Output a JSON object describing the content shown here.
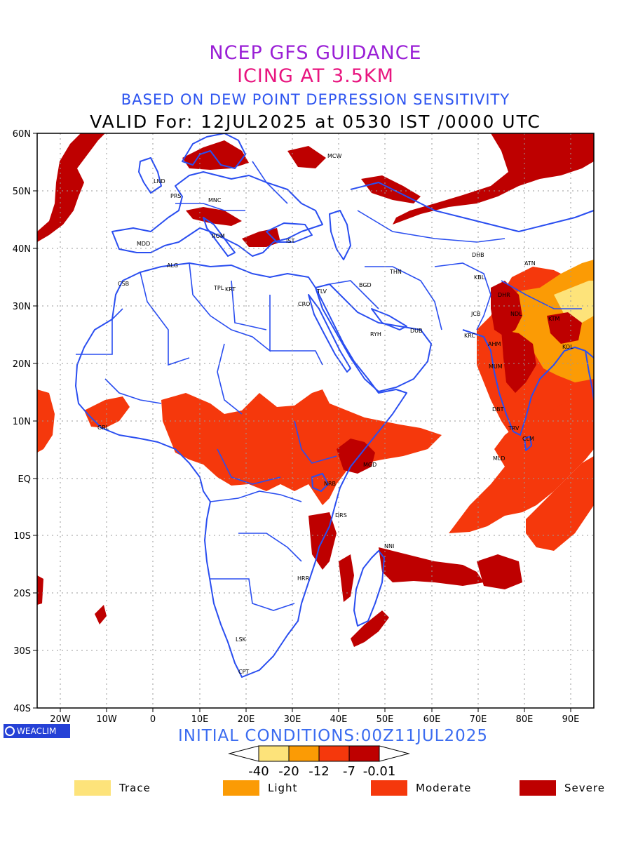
{
  "title": {
    "line1": "NCEP GFS GUIDANCE",
    "line2": "ICING AT 3.5KM",
    "line3": "BASED ON DEW POINT DEPRESSION SENSITIVITY",
    "line4": "VALID For: 12JUL2025 at 0530 IST /0000 UTC"
  },
  "axes": {
    "lat_labels": [
      "60N",
      "50N",
      "40N",
      "30N",
      "20N",
      "10N",
      "EQ",
      "10S",
      "20S",
      "30S",
      "40S"
    ],
    "lon_labels": [
      "20W",
      "10W",
      "0",
      "10E",
      "20E",
      "30E",
      "40E",
      "50E",
      "60E",
      "70E",
      "80E",
      "90E"
    ],
    "lon_range": [
      -25,
      95
    ],
    "lat_range": [
      -40,
      60
    ],
    "grid": "dotted"
  },
  "cities": [
    "MCW",
    "LND",
    "PRS",
    "MNC",
    "ROM",
    "MDD",
    "IST",
    "ALG",
    "CSB",
    "TPL",
    "KRT",
    "TLV",
    "CRO",
    "BGD",
    "THN",
    "DHB",
    "KBL",
    "ATN",
    "DHR",
    "NDL",
    "KTM",
    "JCB",
    "RYH",
    "DUB",
    "KRC",
    "AHM",
    "KOL",
    "MUM",
    "DBT",
    "TRV",
    "CLM",
    "MLD",
    "GRL",
    "NRB",
    "MGD",
    "DRS",
    "NNI",
    "HRR",
    "LSK",
    "CPT"
  ],
  "badge": "WEACLIM",
  "initial_conditions": "INITIAL CONDITIONS:00Z11JUL2025",
  "colorbar": {
    "tick_labels": [
      "-40",
      "-20",
      "-12",
      "-7",
      "-0.01"
    ],
    "colors": [
      "#fde37a",
      "#fb9b05",
      "#f5380c",
      "#be0000"
    ]
  },
  "legend": [
    {
      "label": "Trace",
      "color": "#fde37a"
    },
    {
      "label": "Light",
      "color": "#fb9b05"
    },
    {
      "label": "Moderate",
      "color": "#f5380c"
    },
    {
      "label": "Severe",
      "color": "#be0000"
    }
  ]
}
